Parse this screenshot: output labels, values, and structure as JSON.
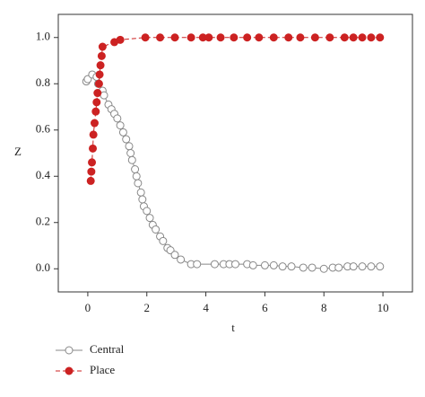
{
  "chart_data": {
    "type": "line",
    "xlabel": "t",
    "ylabel": "Z",
    "xlim": [
      -1,
      11
    ],
    "ylim": [
      -0.1,
      1.1
    ],
    "xticks": [
      0,
      2,
      4,
      6,
      8,
      10
    ],
    "yticks": [
      {
        "value": 0,
        "label": "0.0"
      },
      0.2,
      0.4,
      0.6,
      0.8,
      {
        "value": 1,
        "label": "1.0"
      }
    ],
    "series": [
      {
        "name": "Central",
        "color": "#888888",
        "marker": "hollow",
        "x": [
          -0.05,
          0,
          0.15,
          0.3,
          0.35,
          0.5,
          0.55,
          0.7,
          0.8,
          0.9,
          1.0,
          1.1,
          1.2,
          1.3,
          1.4,
          1.45,
          1.5,
          1.6,
          1.65,
          1.7,
          1.8,
          1.85,
          1.9,
          2.0,
          2.1,
          2.2,
          2.3,
          2.45,
          2.55,
          2.7,
          2.8,
          2.95,
          3.15,
          3.5,
          3.7,
          4.3,
          4.6,
          4.8,
          5.0,
          5.4,
          5.6,
          6.0,
          6.3,
          6.6,
          6.9,
          7.3,
          7.6,
          8.0,
          8.3,
          8.5,
          8.8,
          9.0,
          9.3,
          9.6,
          9.9
        ],
        "values": [
          0.81,
          0.82,
          0.84,
          0.83,
          0.8,
          0.77,
          0.75,
          0.71,
          0.69,
          0.67,
          0.65,
          0.62,
          0.59,
          0.56,
          0.53,
          0.5,
          0.47,
          0.43,
          0.4,
          0.37,
          0.33,
          0.3,
          0.27,
          0.25,
          0.22,
          0.19,
          0.17,
          0.14,
          0.12,
          0.09,
          0.08,
          0.06,
          0.04,
          0.02,
          0.02,
          0.02,
          0.02,
          0.02,
          0.02,
          0.02,
          0.015,
          0.015,
          0.015,
          0.01,
          0.01,
          0.005,
          0.005,
          0,
          0.005,
          0.005,
          0.01,
          0.01,
          0.01,
          0.01,
          0.01
        ]
      },
      {
        "name": "Place",
        "color": "#cc2222",
        "marker": "filled",
        "dashed": true,
        "x": [
          0.1,
          0.12,
          0.14,
          0.17,
          0.19,
          0.23,
          0.27,
          0.3,
          0.33,
          0.38,
          0.4,
          0.43,
          0.47,
          0.5,
          0.9,
          1.1,
          1.95,
          2.45,
          2.95,
          3.5,
          3.9,
          4.1,
          4.5,
          4.95,
          5.4,
          5.8,
          6.3,
          6.8,
          7.2,
          7.7,
          8.2,
          8.7,
          9.0,
          9.3,
          9.6,
          9.9
        ],
        "values": [
          0.38,
          0.42,
          0.46,
          0.52,
          0.58,
          0.63,
          0.68,
          0.72,
          0.76,
          0.8,
          0.84,
          0.88,
          0.92,
          0.96,
          0.98,
          0.99,
          1.0,
          1.0,
          1.0,
          1.0,
          1.0,
          1.0,
          1.0,
          1.0,
          1.0,
          1.0,
          1.0,
          1.0,
          1.0,
          1.0,
          1.0,
          1.0,
          1.0,
          1.0,
          1.0,
          1.0
        ]
      }
    ]
  }
}
